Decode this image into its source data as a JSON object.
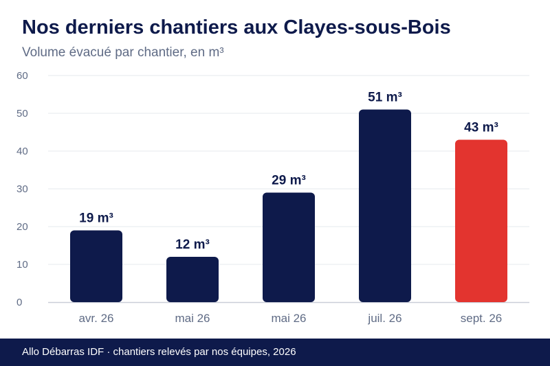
{
  "header": {
    "title": "Nos derniers chantiers aux Clayes-sous-Bois",
    "subtitle": "Volume évacué par chantier, en m³"
  },
  "footer": {
    "text": "Allo Débarras IDF · chantiers relevés par nos équipes, 2026"
  },
  "colors": {
    "bar": "#0e1a4b",
    "highlight": "#e3342f",
    "grid": "#e6e8ee",
    "axis": "#c9cdd8",
    "tick_text": "#5f6b85",
    "label_text": "#0e1a4b"
  },
  "chart_data": {
    "type": "bar",
    "title": "Nos derniers chantiers aux Clayes-sous-Bois",
    "subtitle": "Volume évacué par chantier, en m³",
    "xlabel": "",
    "ylabel": "",
    "categories": [
      "avr. 26",
      "mai 26",
      "mai 26",
      "juil. 26",
      "sept. 26"
    ],
    "values": [
      19,
      12,
      29,
      51,
      43
    ],
    "data_labels": [
      "19 m³",
      "12 m³",
      "29 m³",
      "51 m³",
      "43 m³"
    ],
    "highlight_index": 4,
    "ylim": [
      0,
      60
    ],
    "yticks": [
      0,
      10,
      20,
      30,
      40,
      50,
      60
    ],
    "grid": true,
    "legend": "none"
  }
}
